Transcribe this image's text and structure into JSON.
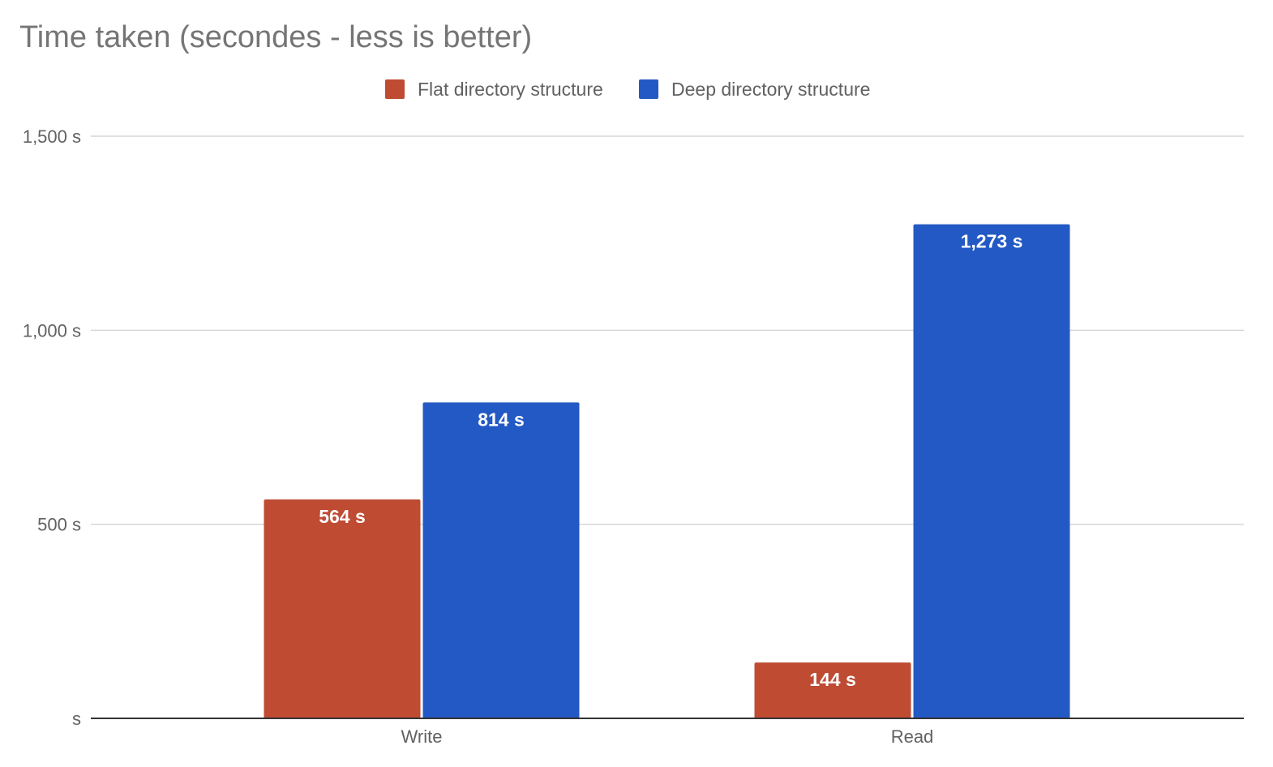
{
  "chart_data": {
    "type": "bar",
    "title": "Time taken (secondes - less is better)",
    "categories": [
      "Write",
      "Read"
    ],
    "series": [
      {
        "name": "Flat directory structure",
        "color": "#BE4B32",
        "values": [
          564,
          144
        ],
        "labels": [
          "564 s",
          "144 s"
        ]
      },
      {
        "name": "Deep directory structure",
        "color": "#2359C4",
        "values": [
          814,
          1273
        ],
        "labels": [
          "814 s",
          "1,273 s"
        ]
      }
    ],
    "ylim": [
      0,
      1500
    ],
    "yticks": [
      {
        "value": 0,
        "label": "s"
      },
      {
        "value": 500,
        "label": "500 s"
      },
      {
        "value": 1000,
        "label": "1,000 s"
      },
      {
        "value": 1500,
        "label": "1,500 s"
      }
    ],
    "xlabel": "",
    "ylabel": "",
    "grid": true,
    "legend_position": "top-center"
  }
}
